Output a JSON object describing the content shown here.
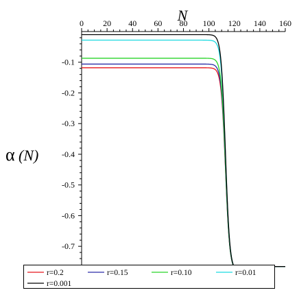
{
  "chart_data": {
    "type": "line",
    "title": "",
    "xlabel": "N",
    "ylabel": "α(N)",
    "ylabel_symbol": "α",
    "ylabel_argument": "N",
    "xlim": [
      0,
      160
    ],
    "ylim": [
      -0.76,
      0
    ],
    "x_ticks": [
      0,
      20,
      40,
      60,
      80,
      100,
      120,
      140,
      160
    ],
    "x_tick_labels": [
      "0",
      "20",
      "40",
      "60",
      "80",
      "100",
      "120",
      "140",
      "160"
    ],
    "y_ticks": [
      -0.1,
      -0.2,
      -0.3,
      -0.4,
      -0.5,
      -0.6,
      -0.7
    ],
    "y_tick_labels": [
      "-0.1",
      "-0.2",
      "-0.3",
      "-0.4",
      "-0.5",
      "-0.6",
      "-0.7"
    ],
    "x_axis_position": "top",
    "grid": false,
    "legend_position": "bottom",
    "series": [
      {
        "name": "r=0.2",
        "color": "#e8151b",
        "plateau": -0.118,
        "transition_x": 113,
        "final": -0.78
      },
      {
        "name": "r=0.15",
        "color": "#2b2ba6",
        "plateau": -0.106,
        "transition_x": 113,
        "final": -0.78
      },
      {
        "name": "r=0.10",
        "color": "#28d428",
        "plateau": -0.087,
        "transition_x": 113,
        "final": -0.78
      },
      {
        "name": "r=0.01",
        "color": "#19d9e0",
        "plateau": -0.028,
        "transition_x": 113,
        "final": -0.78
      },
      {
        "name": "r=0.001",
        "color": "#000000",
        "plateau": -0.01,
        "transition_x": 113,
        "final": -0.78
      }
    ]
  }
}
